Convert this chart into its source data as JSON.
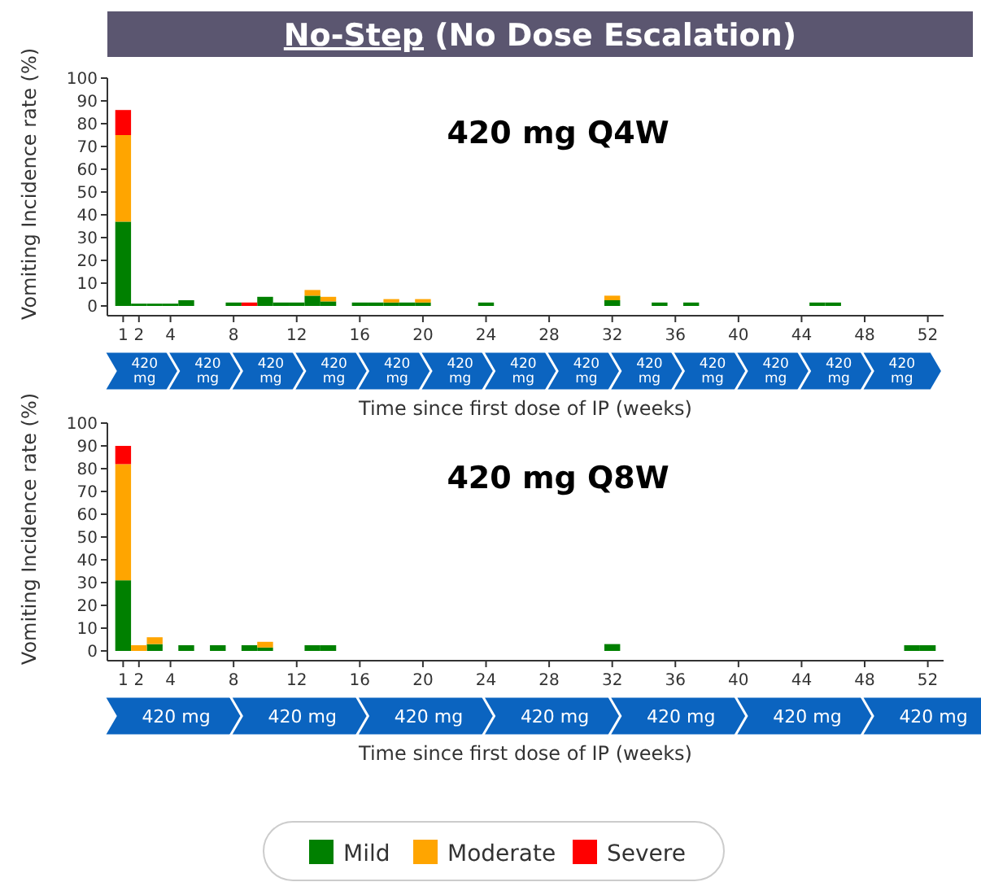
{
  "chart_data": [
    {
      "type": "bar",
      "title": "No-Step (No Dose Escalation)",
      "subtitle": "420 mg Q4W",
      "ylabel": "Vomiting Incidence rate (%)",
      "xlabel": "Time since first dose of IP (weeks)",
      "stacked": true,
      "grid": false,
      "legend": "bottom",
      "x": [
        1,
        2,
        3,
        4,
        5,
        8,
        9,
        10,
        11,
        12,
        13,
        14,
        16,
        17,
        18,
        19,
        20,
        24,
        32,
        35,
        37,
        45,
        46
      ],
      "xlim": [
        0,
        53
      ],
      "xticks": [
        1,
        2,
        4,
        8,
        12,
        16,
        20,
        24,
        28,
        32,
        36,
        40,
        44,
        48,
        52
      ],
      "ylim": [
        0,
        100
      ],
      "yticks": [
        0,
        10,
        20,
        30,
        40,
        50,
        60,
        70,
        80,
        90,
        100
      ],
      "series": [
        {
          "name": "Mild",
          "color": "#008000",
          "values": [
            37,
            1,
            1,
            1,
            2.5,
            1.5,
            null,
            4,
            1.5,
            1.5,
            4.5,
            2,
            1.5,
            1.5,
            1.5,
            1.5,
            1.5,
            1.5,
            2.5,
            1.5,
            1.5,
            1.5,
            1.5
          ]
        },
        {
          "name": "Moderate",
          "color": "#ffa500",
          "values": [
            38,
            null,
            null,
            null,
            null,
            null,
            null,
            null,
            null,
            null,
            2.5,
            2,
            null,
            null,
            1.5,
            null,
            1.5,
            null,
            2,
            null,
            null,
            null,
            null
          ]
        },
        {
          "name": "Severe",
          "color": "#ff0000",
          "values": [
            11,
            null,
            null,
            null,
            null,
            null,
            1.5,
            null,
            null,
            null,
            null,
            null,
            null,
            null,
            null,
            null,
            null,
            null,
            null,
            null,
            null,
            null,
            null
          ]
        }
      ],
      "annotations": [
        "420 mg",
        "420 mg",
        "420 mg",
        "420 mg",
        "420 mg",
        "420 mg",
        "420 mg",
        "420 mg",
        "420 mg",
        "420 mg",
        "420 mg",
        "420 mg",
        "420 mg"
      ]
    },
    {
      "type": "bar",
      "subtitle": "420 mg Q8W",
      "ylabel": "Vomiting Incidence rate (%)",
      "xlabel": "Time since first dose of IP (weeks)",
      "stacked": true,
      "grid": false,
      "legend": "bottom",
      "x": [
        1,
        2,
        3,
        5,
        7,
        9,
        10,
        13,
        14,
        32,
        51,
        52
      ],
      "xlim": [
        0,
        53
      ],
      "xticks": [
        1,
        2,
        4,
        8,
        12,
        16,
        20,
        24,
        28,
        32,
        36,
        40,
        44,
        48,
        52
      ],
      "ylim": [
        0,
        100
      ],
      "yticks": [
        0,
        10,
        20,
        30,
        40,
        50,
        60,
        70,
        80,
        90,
        100
      ],
      "series": [
        {
          "name": "Mild",
          "color": "#008000",
          "values": [
            31,
            null,
            3,
            2.5,
            2.5,
            2.5,
            1.5,
            2.5,
            2.5,
            3,
            2.5,
            2.5
          ]
        },
        {
          "name": "Moderate",
          "color": "#ffa500",
          "values": [
            51,
            2.5,
            3,
            null,
            null,
            null,
            2.5,
            null,
            null,
            null,
            null,
            null
          ]
        },
        {
          "name": "Severe",
          "color": "#ff0000",
          "values": [
            8,
            null,
            null,
            null,
            null,
            null,
            null,
            null,
            null,
            null,
            null,
            null
          ]
        }
      ],
      "annotations": [
        "420 mg",
        "420 mg",
        "420 mg",
        "420 mg",
        "420 mg",
        "420 mg",
        "420 mg"
      ]
    }
  ]
}
